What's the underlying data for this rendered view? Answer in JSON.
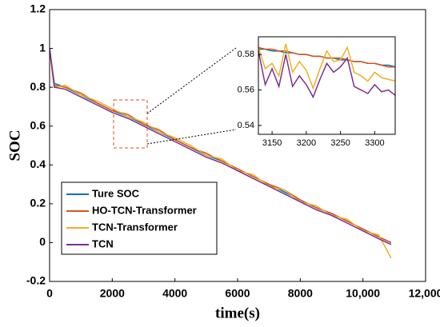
{
  "chart_data": [
    {
      "type": "line",
      "xlabel": "time(s)",
      "ylabel": "SOC",
      "x": [
        0,
        150,
        500,
        1000,
        1500,
        2000,
        2500,
        3000,
        3500,
        4000,
        4500,
        5000,
        5500,
        6000,
        6500,
        7000,
        7500,
        8000,
        8500,
        9000,
        9500,
        10000,
        10500,
        10900
      ],
      "series": [
        {
          "name": "Ture SOC",
          "color": "#0072bd",
          "values": [
            1.0,
            0.82,
            0.8,
            0.76,
            0.72,
            0.68,
            0.65,
            0.61,
            0.57,
            0.53,
            0.49,
            0.45,
            0.42,
            0.38,
            0.34,
            0.3,
            0.26,
            0.22,
            0.18,
            0.15,
            0.11,
            0.07,
            0.03,
            0.0
          ]
        },
        {
          "name": "HO-TCN-Transformer",
          "color": "#d95319",
          "values": [
            1.0,
            0.81,
            0.8,
            0.77,
            0.72,
            0.68,
            0.66,
            0.61,
            0.58,
            0.53,
            0.49,
            0.46,
            0.42,
            0.38,
            0.34,
            0.3,
            0.27,
            0.22,
            0.18,
            0.15,
            0.11,
            0.07,
            0.03,
            0.0
          ]
        },
        {
          "name": "TCN-Transformer",
          "color": "#edb120",
          "values": [
            0.99,
            0.8,
            0.81,
            0.76,
            0.73,
            0.69,
            0.65,
            0.62,
            0.57,
            0.54,
            0.5,
            0.45,
            0.43,
            0.37,
            0.35,
            0.29,
            0.27,
            0.21,
            0.19,
            0.14,
            0.12,
            0.06,
            0.04,
            -0.08
          ]
        },
        {
          "name": "TCN",
          "color": "#7e2f8e",
          "values": [
            1.0,
            0.8,
            0.79,
            0.75,
            0.71,
            0.67,
            0.64,
            0.6,
            0.56,
            0.52,
            0.48,
            0.44,
            0.41,
            0.37,
            0.33,
            0.29,
            0.25,
            0.21,
            0.17,
            0.14,
            0.1,
            0.06,
            0.02,
            -0.01
          ]
        }
      ],
      "xlim": [
        0,
        12000
      ],
      "ylim": [
        -0.2,
        1.2
      ],
      "xticks": [
        0,
        2000,
        4000,
        6000,
        8000,
        {
          "value": 10000,
          "label": "10,000"
        },
        {
          "value": 12000,
          "label": "12,000"
        }
      ],
      "yticks": [
        -0.2,
        0,
        0.2,
        0.4,
        0.6,
        0.8,
        1,
        1.2
      ],
      "legend": "lower left"
    },
    {
      "type": "line",
      "x": [
        3130,
        3140,
        3150,
        3160,
        3170,
        3180,
        3190,
        3200,
        3210,
        3220,
        3230,
        3240,
        3250,
        3260,
        3270,
        3280,
        3290,
        3300,
        3310,
        3320,
        3330
      ],
      "series": [
        {
          "color": "#0072bd",
          "values": [
            0.583,
            0.583,
            0.582,
            0.582,
            0.581,
            0.581,
            0.58,
            0.58,
            0.579,
            0.579,
            0.578,
            0.578,
            0.577,
            0.577,
            0.576,
            0.576,
            0.575,
            0.575,
            0.574,
            0.574,
            0.573
          ]
        },
        {
          "color": "#d95319",
          "values": [
            0.584,
            0.583,
            0.583,
            0.582,
            0.582,
            0.581,
            0.58,
            0.58,
            0.579,
            0.579,
            0.578,
            0.578,
            0.578,
            0.577,
            0.576,
            0.576,
            0.575,
            0.575,
            0.574,
            0.573,
            0.573
          ]
        },
        {
          "color": "#edb120",
          "values": [
            0.584,
            0.572,
            0.575,
            0.568,
            0.586,
            0.57,
            0.576,
            0.571,
            0.561,
            0.572,
            0.582,
            0.576,
            0.577,
            0.584,
            0.57,
            0.568,
            0.565,
            0.57,
            0.567,
            0.566,
            0.565
          ]
        },
        {
          "color": "#7e2f8e",
          "values": [
            0.582,
            0.563,
            0.572,
            0.562,
            0.58,
            0.562,
            0.568,
            0.563,
            0.556,
            0.566,
            0.575,
            0.57,
            0.573,
            0.578,
            0.562,
            0.56,
            0.558,
            0.563,
            0.559,
            0.56,
            0.557
          ]
        }
      ],
      "xlim": [
        3130,
        3330
      ],
      "ylim": [
        0.535,
        0.59
      ],
      "xticks": [
        3150,
        3200,
        3250,
        3300
      ],
      "yticks": [
        0.54,
        0.56,
        0.58
      ]
    }
  ]
}
